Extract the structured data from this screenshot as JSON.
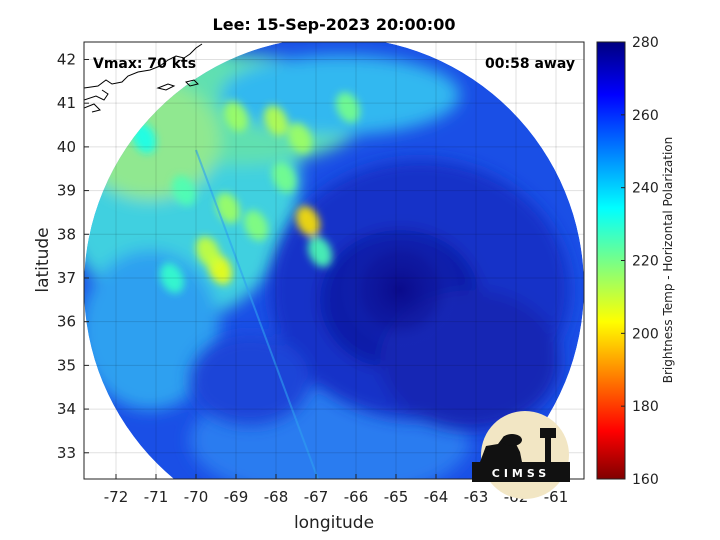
{
  "chart_data": {
    "type": "heatmap",
    "title": "Lee: 15-Sep-2023 20:00:00",
    "xlabel": "longitude",
    "ylabel": "latitude",
    "xlim": [
      -72.8,
      -60.3
    ],
    "ylim": [
      32.4,
      42.4
    ],
    "xticks": [
      -72,
      -71,
      -70,
      -69,
      -68,
      -67,
      -66,
      -65,
      -64,
      -63,
      -62,
      -61
    ],
    "yticks": [
      33,
      34,
      35,
      36,
      37,
      38,
      39,
      40,
      41,
      42
    ],
    "grid": true,
    "annotations": {
      "vmax": "Vmax: 70 kts",
      "time_offset": "00:58 away"
    },
    "colorbar": {
      "label": "Brightness Temp - Horizontal Polarization",
      "range": [
        160,
        280
      ],
      "ticks": [
        160,
        180,
        200,
        220,
        240,
        260,
        280
      ],
      "colormap": "jet"
    },
    "swath": {
      "center": [
        -66.3,
        36.9
      ],
      "radius_deg": 6.2
    },
    "storm_center": [
      -66.0,
      36.9
    ],
    "warm_features": [
      {
        "lon": -69.4,
        "lat": 37.2,
        "value": 205
      },
      {
        "lon": -69.7,
        "lat": 37.6,
        "value": 210
      },
      {
        "lon": -69.2,
        "lat": 38.6,
        "value": 215
      },
      {
        "lon": -68.5,
        "lat": 38.2,
        "value": 218
      },
      {
        "lon": -67.2,
        "lat": 38.3,
        "value": 200
      },
      {
        "lon": -69.0,
        "lat": 40.7,
        "value": 215
      },
      {
        "lon": -68.0,
        "lat": 40.6,
        "value": 212
      },
      {
        "lon": -67.4,
        "lat": 40.2,
        "value": 215
      },
      {
        "lon": -66.2,
        "lat": 40.9,
        "value": 220
      },
      {
        "lon": -67.8,
        "lat": 39.3,
        "value": 220
      },
      {
        "lon": -66.9,
        "lat": 37.6,
        "value": 225
      },
      {
        "lon": -70.3,
        "lat": 39.0,
        "value": 225
      },
      {
        "lon": -70.6,
        "lat": 37.0,
        "value": 228
      },
      {
        "lon": -71.3,
        "lat": 40.2,
        "value": 232
      }
    ],
    "logo_text": "CIMSS"
  }
}
